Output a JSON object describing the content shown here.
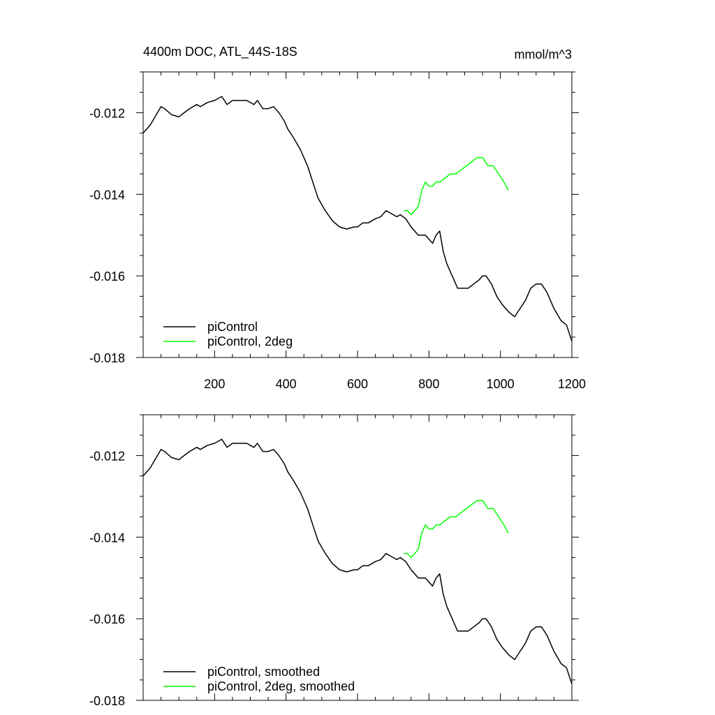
{
  "title_left": "4400m DOC, ATL_44S-18S",
  "title_right": "mmol/m^3",
  "colors": {
    "series1": "#000000",
    "series2": "#00ff00"
  },
  "chart_data": [
    {
      "type": "line",
      "panel": "top",
      "title": "4400m DOC, ATL_44S-18S",
      "units": "mmol/m^3",
      "xlim": [
        0,
        1200
      ],
      "ylim": [
        -0.018,
        -0.011
      ],
      "xticks": [
        200,
        400,
        600,
        800,
        1000,
        1200
      ],
      "xtick_labels": [
        "200",
        "400",
        "600",
        "800",
        "1000",
        "1200"
      ],
      "yticks": [
        -0.012,
        -0.014,
        -0.016,
        -0.018
      ],
      "ytick_labels": [
        "-0.012",
        "-0.014",
        "-0.016",
        "-0.018"
      ],
      "legend_position": "bottom-left",
      "series": [
        {
          "name": "piControl",
          "color": "#000000",
          "x": [
            0,
            20,
            40,
            50,
            60,
            80,
            100,
            115,
            130,
            150,
            160,
            180,
            200,
            210,
            220,
            235,
            250,
            270,
            290,
            310,
            320,
            335,
            350,
            365,
            380,
            395,
            405,
            420,
            440,
            460,
            475,
            490,
            510,
            530,
            550,
            570,
            590,
            600,
            615,
            630,
            650,
            665,
            680,
            690,
            700,
            710,
            720,
            735,
            750,
            770,
            790,
            800,
            810,
            820,
            830,
            840,
            850,
            865,
            880,
            900,
            910,
            925,
            940,
            950,
            960,
            975,
            990,
            1005,
            1015,
            1025,
            1040,
            1055,
            1070,
            1085,
            1100,
            1115,
            1130,
            1150,
            1170,
            1185,
            1200
          ],
          "y": [
            -0.0125,
            -0.0123,
            -0.012,
            -0.01185,
            -0.0119,
            -0.01205,
            -0.0121,
            -0.012,
            -0.0119,
            -0.0118,
            -0.01185,
            -0.01175,
            -0.0117,
            -0.01165,
            -0.0116,
            -0.0118,
            -0.0117,
            -0.0117,
            -0.0117,
            -0.0118,
            -0.0117,
            -0.0119,
            -0.0119,
            -0.01185,
            -0.012,
            -0.0122,
            -0.0124,
            -0.0126,
            -0.0129,
            -0.0133,
            -0.0137,
            -0.0141,
            -0.0144,
            -0.01465,
            -0.0148,
            -0.01485,
            -0.0148,
            -0.0148,
            -0.0147,
            -0.0147,
            -0.0146,
            -0.01455,
            -0.0144,
            -0.01445,
            -0.0145,
            -0.01455,
            -0.0145,
            -0.0146,
            -0.0148,
            -0.015,
            -0.015,
            -0.0151,
            -0.0152,
            -0.015,
            -0.0149,
            -0.0154,
            -0.0157,
            -0.016,
            -0.0163,
            -0.0163,
            -0.0163,
            -0.0162,
            -0.0161,
            -0.016,
            -0.016,
            -0.0162,
            -0.0165,
            -0.0167,
            -0.0168,
            -0.0169,
            -0.017,
            -0.0168,
            -0.0166,
            -0.0163,
            -0.0162,
            -0.0162,
            -0.0164,
            -0.0168,
            -0.0171,
            -0.0172,
            -0.0176
          ]
        },
        {
          "name": "piControl, 2deg",
          "color": "#00ff00",
          "x": [
            730,
            740,
            750,
            760,
            770,
            780,
            790,
            800,
            810,
            820,
            830,
            845,
            860,
            875,
            890,
            905,
            920,
            935,
            950,
            965,
            980,
            995,
            1010,
            1022
          ],
          "y": [
            -0.0144,
            -0.0144,
            -0.0145,
            -0.0144,
            -0.0143,
            -0.0139,
            -0.0137,
            -0.0138,
            -0.0138,
            -0.0137,
            -0.0137,
            -0.0136,
            -0.0135,
            -0.0135,
            -0.0134,
            -0.0133,
            -0.0132,
            -0.0131,
            -0.0131,
            -0.0133,
            -0.0133,
            -0.0135,
            -0.0137,
            -0.0139
          ]
        }
      ]
    },
    {
      "type": "line",
      "panel": "bottom",
      "xlim": [
        0,
        1200
      ],
      "ylim": [
        -0.018,
        -0.011
      ],
      "yticks": [
        -0.012,
        -0.014,
        -0.016,
        -0.018
      ],
      "ytick_labels": [
        "-0.012",
        "-0.014",
        "-0.016",
        "-0.018"
      ],
      "legend_position": "bottom-left",
      "series": [
        {
          "name": "piControl, smoothed",
          "color": "#000000",
          "x": [
            0,
            20,
            40,
            50,
            60,
            80,
            100,
            115,
            130,
            150,
            160,
            180,
            200,
            210,
            220,
            235,
            250,
            270,
            290,
            310,
            320,
            335,
            350,
            365,
            380,
            395,
            405,
            420,
            440,
            460,
            475,
            490,
            510,
            530,
            550,
            570,
            590,
            600,
            615,
            630,
            650,
            665,
            680,
            690,
            700,
            710,
            720,
            735,
            750,
            770,
            790,
            800,
            810,
            820,
            830,
            840,
            850,
            865,
            880,
            900,
            910,
            925,
            940,
            950,
            960,
            975,
            990,
            1005,
            1015,
            1025,
            1040,
            1055,
            1070,
            1085,
            1100,
            1115,
            1130,
            1150,
            1170,
            1185,
            1200
          ],
          "y": [
            -0.0125,
            -0.0123,
            -0.012,
            -0.01185,
            -0.0119,
            -0.01205,
            -0.0121,
            -0.012,
            -0.0119,
            -0.0118,
            -0.01185,
            -0.01175,
            -0.0117,
            -0.01165,
            -0.0116,
            -0.0118,
            -0.0117,
            -0.0117,
            -0.0117,
            -0.0118,
            -0.0117,
            -0.0119,
            -0.0119,
            -0.01185,
            -0.012,
            -0.0122,
            -0.0124,
            -0.0126,
            -0.0129,
            -0.0133,
            -0.0137,
            -0.0141,
            -0.0144,
            -0.01465,
            -0.0148,
            -0.01485,
            -0.0148,
            -0.0148,
            -0.0147,
            -0.0147,
            -0.0146,
            -0.01455,
            -0.0144,
            -0.01445,
            -0.0145,
            -0.01455,
            -0.0145,
            -0.0146,
            -0.0148,
            -0.015,
            -0.015,
            -0.0151,
            -0.0152,
            -0.015,
            -0.0149,
            -0.0154,
            -0.0157,
            -0.016,
            -0.0163,
            -0.0163,
            -0.0163,
            -0.0162,
            -0.0161,
            -0.016,
            -0.016,
            -0.0162,
            -0.0165,
            -0.0167,
            -0.0168,
            -0.0169,
            -0.017,
            -0.0168,
            -0.0166,
            -0.0163,
            -0.0162,
            -0.0162,
            -0.0164,
            -0.0168,
            -0.0171,
            -0.0172,
            -0.0176
          ]
        },
        {
          "name": "piControl, 2deg, smoothed",
          "color": "#00ff00",
          "x": [
            730,
            740,
            750,
            760,
            770,
            780,
            790,
            800,
            810,
            820,
            830,
            845,
            860,
            875,
            890,
            905,
            920,
            935,
            950,
            965,
            980,
            995,
            1010,
            1022
          ],
          "y": [
            -0.0144,
            -0.0144,
            -0.0145,
            -0.0144,
            -0.0143,
            -0.0139,
            -0.0137,
            -0.0138,
            -0.0138,
            -0.0137,
            -0.0137,
            -0.0136,
            -0.0135,
            -0.0135,
            -0.0134,
            -0.0133,
            -0.0132,
            -0.0131,
            -0.0131,
            -0.0133,
            -0.0133,
            -0.0135,
            -0.0137,
            -0.0139
          ]
        }
      ]
    }
  ]
}
